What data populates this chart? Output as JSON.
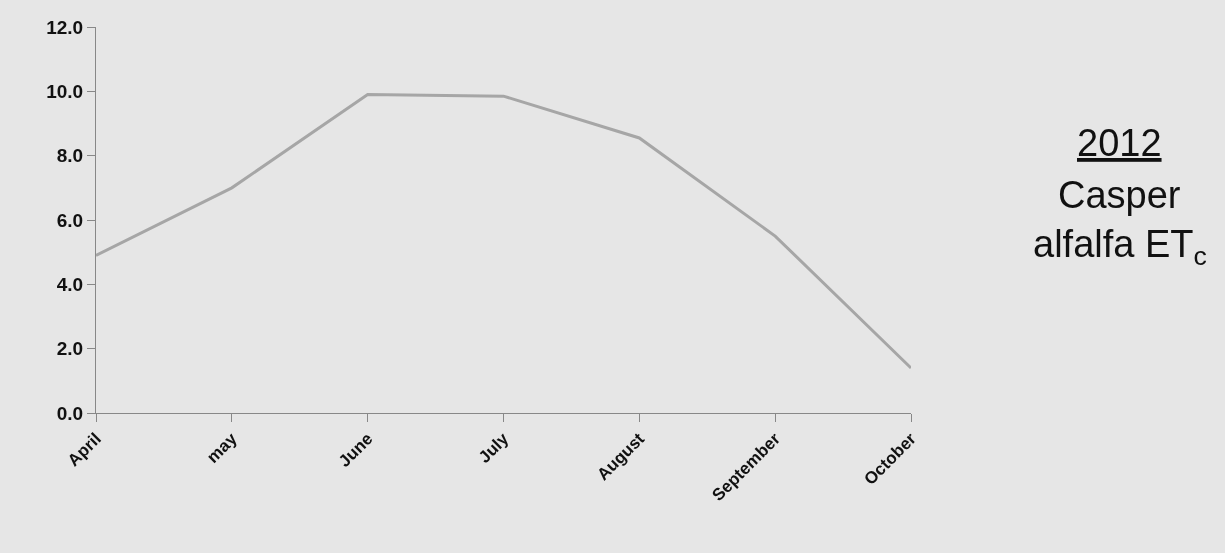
{
  "chart_data": {
    "type": "line",
    "title": "2012",
    "subtitle": "Casper",
    "annotations": [
      "alfalfa ET$_{c}$"
    ],
    "categories": [
      "April",
      "may",
      "June",
      "July",
      "August",
      "September",
      "October"
    ],
    "series": [
      {
        "color": "#a6a6a6",
        "values": [
          4.9,
          7.0,
          9.9,
          9.85,
          8.55,
          5.5,
          1.4
        ]
      }
    ],
    "ylim": [
      0,
      12
    ],
    "yticks": [
      {
        "value": 0,
        "label": "0.0"
      },
      {
        "value": 2,
        "label": "2.0"
      },
      {
        "value": 4,
        "label": "4.0"
      },
      {
        "value": 6,
        "label": "6.0"
      },
      {
        "value": 8,
        "label": "8.0"
      },
      {
        "value": 10,
        "label": "10.0"
      },
      {
        "value": 12,
        "label": "12.0"
      }
    ]
  }
}
